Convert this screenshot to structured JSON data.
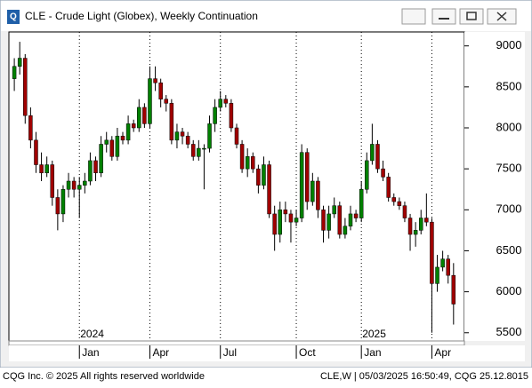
{
  "chart_data": {
    "type": "candlestick",
    "title": "CLE - Crude Light (Globex), Weekly Continuation",
    "footer_left": "CQG Inc. © 2025 All rights reserved worldwide",
    "footer_right": "CLE,W | 05/03/2025 16:50:49, CQG 25.12.8015",
    "up_color": "#008000",
    "down_color": "#a00000",
    "grid": true,
    "xlim": [
      -1,
      83
    ],
    "ylim": [
      5400,
      9170
    ],
    "yticks": [
      5500,
      6000,
      6500,
      7000,
      7500,
      8000,
      8500,
      9000
    ],
    "xticks": [
      {
        "value": 12,
        "label": "Jan"
      },
      {
        "value": 25,
        "label": "Apr"
      },
      {
        "value": 38,
        "label": "Jul"
      },
      {
        "value": 52,
        "label": "Oct"
      },
      {
        "value": 64,
        "label": "Jan"
      },
      {
        "value": 77,
        "label": "Apr"
      }
    ],
    "year_labels": [
      {
        "value": 12,
        "label": "2024"
      },
      {
        "value": 64,
        "label": "2025"
      }
    ],
    "open": [
      8600,
      8750,
      8850,
      8150,
      7850,
      7550,
      7450,
      7550,
      7150,
      6950,
      7250,
      7350,
      7250,
      7300,
      7350,
      7600,
      7450,
      7800,
      7850,
      7650,
      7900,
      7850,
      8050,
      8000,
      8250,
      8050,
      8600,
      8550,
      8350,
      8300,
      7850,
      7950,
      7900,
      7800,
      7650,
      7750,
      7750,
      8050,
      8250,
      8350,
      8300,
      8000,
      7800,
      7500,
      7650,
      7500,
      7300,
      7550,
      6950,
      6700,
      7000,
      6950,
      6850,
      6900,
      7700,
      7100,
      7350,
      7000,
      6750,
      6950,
      7050,
      6700,
      6800,
      6950,
      6900,
      7250,
      7600,
      7800,
      7500,
      7400,
      7150,
      7100,
      7050,
      6900,
      6700,
      6750,
      6900,
      6850,
      6100,
      6300,
      6400,
      6200
    ],
    "high": [
      8850,
      9050,
      8900,
      8250,
      7950,
      7700,
      7650,
      7600,
      7250,
      7300,
      7450,
      7400,
      7400,
      7450,
      7700,
      7650,
      7900,
      7950,
      7900,
      8000,
      7950,
      8150,
      8100,
      8350,
      8300,
      8750,
      8750,
      8600,
      8400,
      8350,
      8050,
      8000,
      7950,
      7850,
      7850,
      7800,
      8150,
      8350,
      8450,
      8400,
      8350,
      8050,
      7850,
      7750,
      7700,
      7550,
      7650,
      7600,
      7050,
      7100,
      7100,
      7000,
      7000,
      7800,
      7750,
      7450,
      7400,
      7050,
      7050,
      7150,
      7100,
      6900,
      7050,
      7000,
      7350,
      7700,
      8050,
      7850,
      7600,
      7450,
      7200,
      7150,
      7100,
      6950,
      6850,
      7000,
      7200,
      6900,
      6450,
      6500,
      6450,
      6350
    ],
    "low": [
      8450,
      8650,
      8050,
      7750,
      7450,
      7350,
      7400,
      7050,
      6750,
      6850,
      7150,
      7150,
      6900,
      7200,
      7300,
      7350,
      7400,
      7700,
      7600,
      7600,
      7800,
      7800,
      7950,
      7950,
      8000,
      8000,
      8450,
      8250,
      8200,
      7800,
      7750,
      7800,
      7750,
      7600,
      7600,
      7250,
      7700,
      7950,
      8200,
      8250,
      7950,
      7750,
      7450,
      7400,
      7450,
      7200,
      7250,
      6900,
      6500,
      6600,
      6850,
      6600,
      6800,
      6850,
      7000,
      7050,
      6900,
      6600,
      6650,
      6900,
      6650,
      6650,
      6750,
      6850,
      6850,
      7200,
      7550,
      7450,
      7350,
      7100,
      7050,
      7000,
      6850,
      6500,
      6550,
      6700,
      6800,
      5500,
      6000,
      6250,
      6100,
      5600
    ],
    "close": [
      8750,
      8850,
      8150,
      7850,
      7550,
      7450,
      7550,
      7150,
      6950,
      7250,
      7350,
      7250,
      7300,
      7350,
      7600,
      7450,
      7800,
      7850,
      7650,
      7900,
      7850,
      8050,
      8000,
      8250,
      8050,
      8600,
      8550,
      8350,
      8300,
      7850,
      7950,
      7900,
      7800,
      7650,
      7750,
      7750,
      8050,
      8250,
      8350,
      8300,
      8000,
      7800,
      7500,
      7650,
      7500,
      7300,
      7550,
      6950,
      6700,
      7000,
      6950,
      6850,
      6900,
      7700,
      7100,
      7350,
      7000,
      6750,
      6950,
      7050,
      6700,
      6800,
      6950,
      6900,
      7250,
      7600,
      7800,
      7500,
      7400,
      7150,
      7100,
      7050,
      6900,
      6700,
      6750,
      6900,
      6850,
      6100,
      6300,
      6400,
      6200,
      5850
    ]
  }
}
